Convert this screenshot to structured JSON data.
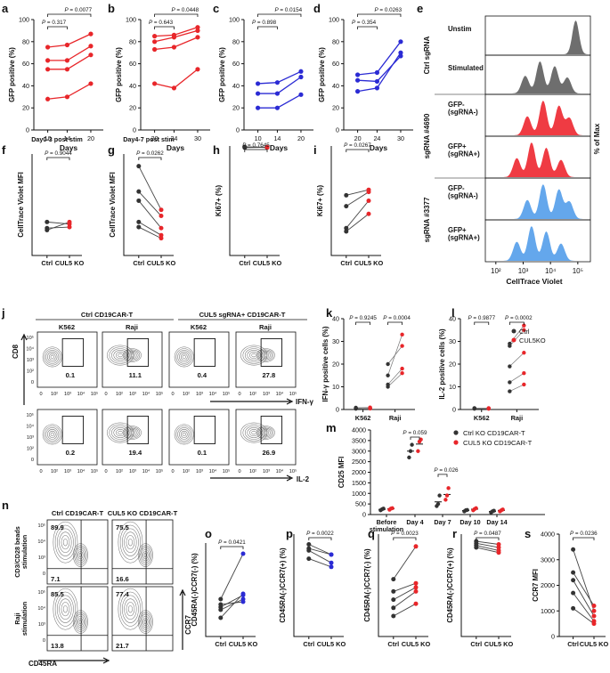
{
  "colors": {
    "ctrl": "#333333",
    "ko": "#e8262a",
    "blue": "#2b2bd4",
    "hist_gray": "#6e6e6e",
    "hist_red": "#ef3b43",
    "hist_blue": "#64a7ec"
  },
  "panels": {
    "a": {
      "label": "a",
      "ylabel": "GFP positive (%)",
      "xlabel": "Days",
      "ticks_x": [
        "10",
        "14",
        "20"
      ],
      "ticks_y": [
        "0",
        "20",
        "40",
        "60",
        "80",
        "100"
      ],
      "p1": "P = 0.317",
      "p2": "P = 0.0077"
    },
    "b": {
      "label": "b",
      "ylabel": "GFP positive (%)",
      "xlabel": "Days",
      "ticks_x": [
        "20",
        "24",
        "30"
      ],
      "ticks_y": [
        "0",
        "20",
        "40",
        "60",
        "80",
        "100"
      ],
      "p1": "P = 0.643",
      "p2": "P = 0.0448"
    },
    "c": {
      "label": "c",
      "ylabel": "GFP positive (%)",
      "xlabel": "Days",
      "ticks_x": [
        "10",
        "14",
        "20"
      ],
      "ticks_y": [
        "0",
        "20",
        "40",
        "60",
        "80",
        "100"
      ],
      "p1": "P = 0.898",
      "p2": "P = 0.0154"
    },
    "d": {
      "label": "d",
      "ylabel": "GFP positive (%)",
      "xlabel": "Days",
      "ticks_x": [
        "20",
        "24",
        "30"
      ],
      "ticks_y": [
        "0",
        "20",
        "40",
        "60",
        "80",
        "100"
      ],
      "p1": "P = 0.354",
      "p2": "P = 0.0263"
    },
    "e": {
      "label": "e",
      "rows": [
        "Unstim",
        "Stimulated",
        "GFP-\n(sgRNA-)",
        "GFP+\n(sgRNA+)",
        "GFP-\n(sgRNA-)",
        "GFP+\n(sgRNA+)"
      ],
      "group1": "Ctrl sgRNA",
      "group2": "sgRNA #4690",
      "group3": "sgRNA #3377",
      "yaxis": "% of Max",
      "xlabel": "CellTrace Violet",
      "ticks_x": [
        "10²",
        "10³",
        "10⁴",
        "10⁵"
      ]
    },
    "f": {
      "label": "f",
      "title": "Day0-3 post stim",
      "ylabel": "CellTrace Violet MFI",
      "ticks_x": [
        "Ctrl",
        "CUL5 KO"
      ],
      "p": "P = 0.9044"
    },
    "g": {
      "label": "g",
      "title": "Day4-7 post stim",
      "ylabel": "CellTrace Violet MFI",
      "ticks_x": [
        "Ctrl",
        "CUL5 KO"
      ],
      "p": "P = 0.0262"
    },
    "h": {
      "label": "h",
      "ylabel": "Ki67+ (%)",
      "ticks_x": [
        "Ctrl",
        "CUL5 KO"
      ],
      "p": "P = 0.7645"
    },
    "i": {
      "label": "i",
      "ylabel": "Ki67+ (%)",
      "ticks_x": [
        "Ctrl",
        "CUL5 KO"
      ],
      "p": "P = 0.0267"
    },
    "j": {
      "label": "j",
      "group1": "Ctrl CD19CAR-T",
      "group2": "CUL5 sgRNA+ CD19CAR-T",
      "cols": [
        "K562",
        "Raji",
        "K562",
        "Raji"
      ],
      "row1_values": [
        "0.1",
        "11.1",
        "0.4",
        "27.8"
      ],
      "row2_values": [
        "0.2",
        "19.4",
        "0.1",
        "26.9"
      ],
      "yaxis": "CD8",
      "xaxis1": "IFN-γ",
      "xaxis2": "IL-2",
      "xticks": [
        "0",
        "10²",
        "10³",
        "10⁴",
        "10⁵"
      ],
      "yticks": [
        "10⁵",
        "10⁴",
        "10³",
        "10²",
        "0"
      ]
    },
    "k": {
      "label": "k",
      "ylabel": "IFN-γ positive cells (%)",
      "ticks_x": [
        "K562",
        "Raji"
      ],
      "ticks_y": [
        "0",
        "10",
        "20",
        "30",
        "40"
      ],
      "p1": "P = 0.9245",
      "p2": "P = 0.0004"
    },
    "l": {
      "label": "l",
      "ylabel": "IL-2 positive cells (%)",
      "ticks_x": [
        "K562",
        "Raji"
      ],
      "ticks_y": [
        "0",
        "10",
        "20",
        "30",
        "40"
      ],
      "p1": "P = 0.9877",
      "p2": "P = 0.0002",
      "legend": [
        "Ctrl",
        "CUL5KO"
      ]
    },
    "m": {
      "label": "m",
      "ylabel": "CD25 MFI",
      "ticks_x": [
        "Before\nstimulation",
        "Day 4",
        "Day 7",
        "Day 10",
        "Day 14"
      ],
      "ticks_y": [
        "0",
        "500",
        "1000",
        "1500",
        "2000",
        "2500",
        "3000",
        "3500",
        "4000"
      ],
      "p1": "P = 0.059",
      "p2": "P = 0.026",
      "legend": [
        "Ctrl KO CD19CAR-T",
        "CUL5 KO CD19CAR-T"
      ]
    },
    "n": {
      "label": "n",
      "group1": "Ctrl CD19CAR-T",
      "group2": "CUL5 KO CD19CAR-T",
      "row1": "CD3/CD28 beads\nstimulation",
      "row2": "Raji\nstimulation",
      "tl": [
        "89.9",
        "75.5",
        "85.5",
        "77.4"
      ],
      "bl": [
        "7.1",
        "16.6",
        "13.8",
        "21.7"
      ],
      "yaxis": "CCR7",
      "xaxis": "CD45RA",
      "yticks": [
        "10⁵",
        "10⁴",
        "10³",
        "0"
      ]
    },
    "o": {
      "label": "o",
      "ylabel": "CD45RA(-)CCR7(-) (%)",
      "ticks_x": [
        "Ctrl",
        "CUL5 KO"
      ],
      "p": "P = 0.0421"
    },
    "p": {
      "label": "p",
      "ylabel": "CD45RA(-)CCR7(+) (%)",
      "ticks_x": [
        "Ctrl",
        "CUL5 KO"
      ],
      "p": "P = 0.0022"
    },
    "q": {
      "label": "q",
      "ylabel": "CD45RA(-)CCR7(-) (%)",
      "ticks_x": [
        "Ctrl",
        "CUL5 KO"
      ],
      "p": "P = 0.0023"
    },
    "r": {
      "label": "r",
      "ylabel": "CD45RA(-)CCR7(+) (%)",
      "ticks_x": [
        "Ctrl",
        "CUL5 KO"
      ],
      "p": "P = 0.0487"
    },
    "s": {
      "label": "s",
      "ylabel": "CCR7 MFI",
      "ticks_x": [
        "Ctrl",
        "CUL5 KO"
      ],
      "ticks_y": [
        "0",
        "1000",
        "2000",
        "3000",
        "4000"
      ],
      "p": "P = 0.0236"
    }
  },
  "chart_data": [
    {
      "panel": "a",
      "type": "line",
      "x": [
        10,
        14,
        20
      ],
      "ylim": [
        0,
        100
      ],
      "series": [
        {
          "name": "donor1",
          "values": [
            63,
            63,
            76
          ]
        },
        {
          "name": "donor2",
          "values": [
            75,
            77,
            87
          ]
        },
        {
          "name": "donor3",
          "values": [
            28,
            30,
            42
          ]
        },
        {
          "name": "donor4",
          "values": [
            55,
            55,
            68
          ]
        }
      ]
    },
    {
      "panel": "b",
      "type": "line",
      "x": [
        20,
        24,
        30
      ],
      "ylim": [
        0,
        100
      ],
      "series": [
        {
          "name": "donor1",
          "values": [
            73,
            75,
            84
          ]
        },
        {
          "name": "donor2",
          "values": [
            42,
            38,
            55
          ]
        },
        {
          "name": "donor3",
          "values": [
            80,
            84,
            90
          ]
        },
        {
          "name": "donor4",
          "values": [
            85,
            86,
            93
          ]
        }
      ]
    },
    {
      "panel": "c",
      "type": "line",
      "x": [
        10,
        14,
        20
      ],
      "ylim": [
        0,
        100
      ],
      "series": [
        {
          "name": "donor1",
          "values": [
            42,
            43,
            53
          ]
        },
        {
          "name": "donor2",
          "values": [
            33,
            33,
            48
          ]
        },
        {
          "name": "donor3",
          "values": [
            20,
            20,
            32
          ]
        }
      ]
    },
    {
      "panel": "d",
      "type": "line",
      "x": [
        20,
        24,
        30
      ],
      "ylim": [
        0,
        100
      ],
      "series": [
        {
          "name": "donor1",
          "values": [
            50,
            52,
            80
          ]
        },
        {
          "name": "donor2",
          "values": [
            45,
            44,
            67
          ]
        },
        {
          "name": "donor3",
          "values": [
            35,
            38,
            70
          ]
        }
      ]
    },
    {
      "panel": "f",
      "type": "line",
      "categories": [
        "Ctrl",
        "CUL5 KO"
      ],
      "ylim": [
        0,
        10000
      ],
      "series": [
        {
          "name": "d1",
          "values": [
            3300,
            3100
          ]
        },
        {
          "name": "d2",
          "values": [
            2700,
            2800
          ]
        },
        {
          "name": "d3",
          "values": [
            2500,
            3300
          ]
        }
      ]
    },
    {
      "panel": "g",
      "type": "line",
      "categories": [
        "Ctrl",
        "CUL5 KO"
      ],
      "ylim": [
        0,
        10000
      ],
      "series": [
        {
          "name": "d1",
          "values": [
            8800,
            4500
          ]
        },
        {
          "name": "d2",
          "values": [
            6300,
            3900
          ]
        },
        {
          "name": "d3",
          "values": [
            5400,
            2700
          ]
        },
        {
          "name": "d4",
          "values": [
            3300,
            2000
          ]
        },
        {
          "name": "d5",
          "values": [
            2800,
            1700
          ]
        }
      ]
    },
    {
      "panel": "h",
      "type": "line",
      "categories": [
        "Ctrl",
        "CUL5 KO"
      ],
      "ylim": [
        0,
        100
      ],
      "series": [
        {
          "name": "d1",
          "values": [
            99,
            99
          ]
        },
        {
          "name": "d2",
          "values": [
            98.5,
            98.8
          ]
        },
        {
          "name": "d3",
          "values": [
            99.2,
            98.5
          ]
        }
      ]
    },
    {
      "panel": "i",
      "type": "line",
      "categories": [
        "Ctrl",
        "CUL5 KO"
      ],
      "ylim": [
        0,
        100
      ],
      "series": [
        {
          "name": "d1",
          "values": [
            55,
            60
          ]
        },
        {
          "name": "d2",
          "values": [
            45,
            58
          ]
        },
        {
          "name": "d3",
          "values": [
            25,
            50
          ]
        },
        {
          "name": "d4",
          "values": [
            22,
            38
          ]
        }
      ]
    },
    {
      "panel": "k",
      "type": "scatter",
      "categories": [
        "K562",
        "Raji"
      ],
      "ylim": [
        0,
        40
      ],
      "series": [
        {
          "name": "Ctrl",
          "values": [
            [
              0.5,
              0.3,
              0.8,
              0.6
            ],
            [
              10,
              11,
              20,
              15
            ]
          ]
        },
        {
          "name": "CUL5 KO",
          "values": [
            [
              0.4,
              0.6,
              0.9,
              0.5
            ],
            [
              16,
              18,
              28,
              33
            ]
          ]
        }
      ]
    },
    {
      "panel": "l",
      "type": "scatter",
      "categories": [
        "K562",
        "Raji"
      ],
      "ylim": [
        0,
        40
      ],
      "series": [
        {
          "name": "Ctrl",
          "values": [
            [
              0.5,
              0.3,
              0.6,
              0.4
            ],
            [
              8,
              12,
              19,
              28,
              29
            ]
          ]
        },
        {
          "name": "CUL5KO",
          "values": [
            [
              0.4,
              0.5,
              0.6,
              0.3
            ],
            [
              11,
              16,
              25,
              35,
              37
            ]
          ]
        }
      ]
    },
    {
      "panel": "m",
      "type": "scatter",
      "categories": [
        "Before\nstimulation",
        "Day 4",
        "Day 7",
        "Day 10",
        "Day 14"
      ],
      "ylim": [
        0,
        4000
      ],
      "series": [
        {
          "name": "Ctrl KO CD19CAR-T",
          "values": [
            [
              200,
              250,
              280
            ],
            [
              2700,
              3000,
              3300
            ],
            [
              400,
              500,
              900
            ],
            [
              150,
              200,
              220
            ],
            [
              100,
              150,
              180
            ]
          ]
        },
        {
          "name": "CUL5 KO CD19CAR-T",
          "values": [
            [
              230,
              280,
              300
            ],
            [
              3000,
              3450,
              3550
            ],
            [
              700,
              900,
              1250
            ],
            [
              200,
              260,
              300
            ],
            [
              150,
              200,
              240
            ]
          ]
        }
      ]
    },
    {
      "panel": "o",
      "type": "line",
      "categories": [
        "Ctrl",
        "CUL5 KO"
      ],
      "ylim": [
        0,
        35
      ],
      "series": [
        {
          "name": "d1",
          "values": [
            14,
            31
          ]
        },
        {
          "name": "d2",
          "values": [
            11,
            15.5
          ]
        },
        {
          "name": "d3",
          "values": [
            10,
            14
          ]
        },
        {
          "name": "d4",
          "values": [
            7,
            16
          ]
        },
        {
          "name": "d5",
          "values": [
            12,
            13
          ]
        }
      ]
    },
    {
      "panel": "p",
      "type": "line",
      "categories": [
        "Ctrl",
        "CUL5 KO"
      ],
      "ylim": [
        0,
        100
      ],
      "series": [
        {
          "name": "d1",
          "values": [
            90,
            80
          ]
        },
        {
          "name": "d2",
          "values": [
            86,
            80
          ]
        },
        {
          "name": "d3",
          "values": [
            84,
            72
          ]
        },
        {
          "name": "d4",
          "values": [
            76,
            68
          ]
        }
      ]
    },
    {
      "panel": "q",
      "type": "line",
      "categories": [
        "Ctrl",
        "CUL5 KO"
      ],
      "ylim": [
        0,
        25
      ],
      "series": [
        {
          "name": "d1",
          "values": [
            14,
            22
          ]
        },
        {
          "name": "d2",
          "values": [
            11,
            13
          ]
        },
        {
          "name": "d3",
          "values": [
            9,
            12
          ]
        },
        {
          "name": "d4",
          "values": [
            7,
            11
          ]
        },
        {
          "name": "d5",
          "values": [
            5,
            8
          ]
        }
      ]
    },
    {
      "panel": "r",
      "type": "line",
      "categories": [
        "Ctrl",
        "CUL5 KO"
      ],
      "ylim": [
        0,
        100
      ],
      "series": [
        {
          "name": "d1",
          "values": [
            93,
            90
          ]
        },
        {
          "name": "d2",
          "values": [
            91,
            87
          ]
        },
        {
          "name": "d3",
          "values": [
            89,
            84
          ]
        },
        {
          "name": "d4",
          "values": [
            87,
            82
          ]
        }
      ]
    },
    {
      "panel": "s",
      "type": "line",
      "categories": [
        "Ctrl",
        "CUL5 KO"
      ],
      "ylim": [
        0,
        4000
      ],
      "series": [
        {
          "name": "d1",
          "values": [
            3400,
            1000
          ]
        },
        {
          "name": "d2",
          "values": [
            2500,
            1200
          ]
        },
        {
          "name": "d3",
          "values": [
            2200,
            800
          ]
        },
        {
          "name": "d4",
          "values": [
            1700,
            600
          ]
        },
        {
          "name": "d5",
          "values": [
            1100,
            500
          ]
        }
      ]
    }
  ]
}
